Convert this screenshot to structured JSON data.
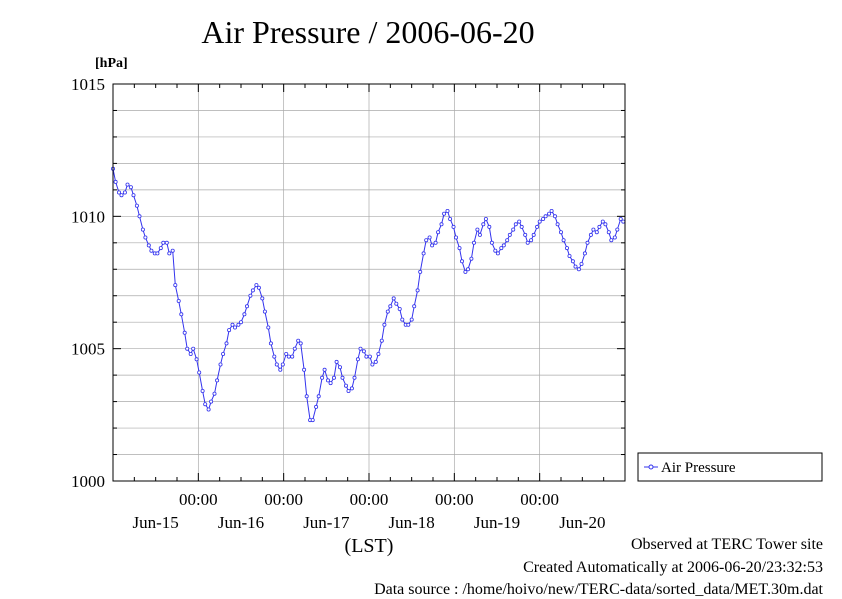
{
  "header": {
    "title": "Air Pressure / 2006-06-20",
    "unit_label": "[hPa]"
  },
  "footer": {
    "site": "Observed at TERC Tower site",
    "created": "Created Automatically at 2006-06-20/23:32:53",
    "source": "Data source : /home/hoivo/new/TERC-data/sorted_data/MET.30m.dat"
  },
  "colors": {
    "series": "#3333ee",
    "grid": "#aaaaaa",
    "axis": "#000000"
  },
  "chart_data": {
    "type": "line",
    "title": "Air Pressure / 2006-06-20",
    "ylabel": "[hPa]",
    "xlabel": "(LST)",
    "ylim": [
      1000,
      1015
    ],
    "xlim": [
      0,
      6
    ],
    "yticks": [
      1000,
      1005,
      1010,
      1015
    ],
    "xticks": [
      {
        "x": 1,
        "time": "00:00",
        "date": "Jun-15"
      },
      {
        "x": 2,
        "time": "00:00",
        "date": "Jun-16"
      },
      {
        "x": 3,
        "time": "00:00",
        "date": "Jun-17"
      },
      {
        "x": 4,
        "time": "00:00",
        "date": "Jun-18"
      },
      {
        "x": 5,
        "time": "00:00",
        "date": "Jun-19"
      },
      {
        "x": 6,
        "time": "",
        "date": "Jun-20"
      }
    ],
    "grid": true,
    "legend_position": "right",
    "series": [
      {
        "name": "Air Pressure",
        "x": [
          0.0,
          0.03,
          0.07,
          0.1,
          0.14,
          0.17,
          0.21,
          0.24,
          0.28,
          0.31,
          0.35,
          0.38,
          0.42,
          0.45,
          0.49,
          0.52,
          0.56,
          0.59,
          0.63,
          0.66,
          0.7,
          0.73,
          0.77,
          0.8,
          0.84,
          0.87,
          0.91,
          0.94,
          0.98,
          1.01,
          1.05,
          1.08,
          1.12,
          1.15,
          1.19,
          1.22,
          1.26,
          1.29,
          1.33,
          1.36,
          1.4,
          1.43,
          1.47,
          1.5,
          1.54,
          1.57,
          1.61,
          1.64,
          1.68,
          1.71,
          1.75,
          1.78,
          1.82,
          1.85,
          1.89,
          1.92,
          1.96,
          1.99,
          2.03,
          2.06,
          2.1,
          2.13,
          2.17,
          2.2,
          2.24,
          2.27,
          2.31,
          2.34,
          2.38,
          2.41,
          2.45,
          2.48,
          2.52,
          2.55,
          2.59,
          2.62,
          2.66,
          2.69,
          2.73,
          2.76,
          2.8,
          2.83,
          2.87,
          2.9,
          2.94,
          2.97,
          3.01,
          3.04,
          3.08,
          3.11,
          3.15,
          3.18,
          3.22,
          3.25,
          3.29,
          3.32,
          3.36,
          3.39,
          3.43,
          3.46,
          3.5,
          3.53,
          3.57,
          3.6,
          3.64,
          3.67,
          3.71,
          3.74,
          3.78,
          3.81,
          3.85,
          3.88,
          3.92,
          3.95,
          3.99,
          4.02,
          4.06,
          4.09,
          4.13,
          4.16,
          4.2,
          4.23,
          4.27,
          4.3,
          4.34,
          4.37,
          4.41,
          4.44,
          4.48,
          4.51,
          4.55,
          4.58,
          4.62,
          4.65,
          4.69,
          4.72,
          4.76,
          4.79,
          4.83,
          4.86,
          4.9,
          4.93,
          4.97,
          5.0,
          5.04,
          5.07,
          5.11,
          5.14,
          5.18,
          5.21,
          5.25,
          5.28,
          5.32,
          5.35,
          5.39,
          5.42,
          5.46,
          5.49,
          5.53,
          5.56,
          5.6,
          5.63,
          5.67,
          5.7,
          5.74,
          5.77,
          5.81,
          5.84,
          5.88,
          5.91,
          5.95,
          5.98
        ],
        "values": [
          1011.8,
          1011.3,
          1010.9,
          1010.8,
          1010.9,
          1011.2,
          1011.1,
          1010.8,
          1010.4,
          1010.0,
          1009.5,
          1009.2,
          1008.9,
          1008.7,
          1008.6,
          1008.6,
          1008.8,
          1009.0,
          1009.0,
          1008.6,
          1008.7,
          1007.4,
          1006.8,
          1006.3,
          1005.6,
          1005.0,
          1004.8,
          1005.0,
          1004.6,
          1004.1,
          1003.4,
          1002.9,
          1002.7,
          1003.0,
          1003.3,
          1003.8,
          1004.4,
          1004.8,
          1005.2,
          1005.7,
          1005.9,
          1005.8,
          1005.9,
          1006.0,
          1006.3,
          1006.6,
          1007.0,
          1007.2,
          1007.4,
          1007.3,
          1006.9,
          1006.4,
          1005.8,
          1005.2,
          1004.7,
          1004.4,
          1004.2,
          1004.4,
          1004.8,
          1004.7,
          1004.7,
          1005.0,
          1005.3,
          1005.2,
          1004.2,
          1003.2,
          1002.3,
          1002.3,
          1002.8,
          1003.2,
          1003.9,
          1004.2,
          1003.8,
          1003.7,
          1003.9,
          1004.5,
          1004.3,
          1003.9,
          1003.6,
          1003.4,
          1003.5,
          1003.9,
          1004.6,
          1005.0,
          1004.9,
          1004.7,
          1004.7,
          1004.4,
          1004.5,
          1004.8,
          1005.3,
          1005.9,
          1006.4,
          1006.6,
          1006.9,
          1006.7,
          1006.5,
          1006.1,
          1005.9,
          1005.9,
          1006.1,
          1006.6,
          1007.2,
          1007.9,
          1008.6,
          1009.1,
          1009.2,
          1008.9,
          1009.0,
          1009.4,
          1009.7,
          1010.1,
          1010.2,
          1009.9,
          1009.6,
          1009.2,
          1008.8,
          1008.3,
          1007.9,
          1008.0,
          1008.4,
          1009.0,
          1009.5,
          1009.3,
          1009.7,
          1009.9,
          1009.6,
          1009.0,
          1008.7,
          1008.6,
          1008.8,
          1008.9,
          1009.1,
          1009.3,
          1009.5,
          1009.7,
          1009.8,
          1009.6,
          1009.3,
          1009.0,
          1009.1,
          1009.3,
          1009.6,
          1009.8,
          1009.9,
          1010.0,
          1010.1,
          1010.2,
          1010.0,
          1009.7,
          1009.4,
          1009.1,
          1008.8,
          1008.5,
          1008.3,
          1008.1,
          1008.0,
          1008.2,
          1008.6,
          1009.0,
          1009.3,
          1009.5,
          1009.4,
          1009.6,
          1009.8,
          1009.7,
          1009.4,
          1009.1,
          1009.2,
          1009.5,
          1009.9,
          1009.8
        ]
      }
    ]
  }
}
